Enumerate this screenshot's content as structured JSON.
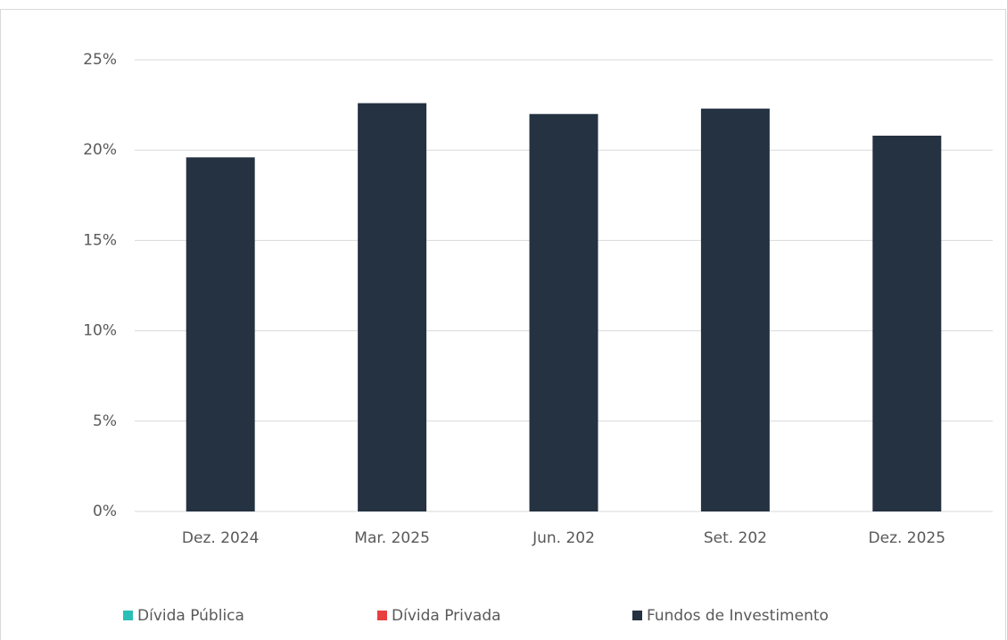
{
  "chart_data": {
    "type": "bar",
    "categories": [
      "Dez. 2024",
      "Mar. 2025",
      "Jun. 202",
      "Set. 202",
      "Dez. 2025"
    ],
    "series": [
      {
        "name": "Dívida Pública",
        "color": "#2abfb6",
        "values": [
          null,
          null,
          null,
          null,
          null
        ]
      },
      {
        "name": "Dívida Privada",
        "color": "#e84040",
        "values": [
          null,
          null,
          null,
          null,
          null
        ]
      },
      {
        "name": "Fundos de Investimento",
        "color": "#243242",
        "values": [
          19.6,
          22.6,
          22.0,
          22.3,
          20.8
        ]
      }
    ],
    "ylim": [
      0,
      25
    ],
    "yticks": [
      {
        "value": 0,
        "label": "0%"
      },
      {
        "value": 5,
        "label": "5%"
      },
      {
        "value": 10,
        "label": "10%"
      },
      {
        "value": 15,
        "label": "15%"
      },
      {
        "value": 20,
        "label": "20%"
      },
      {
        "value": 25,
        "label": "25%"
      }
    ],
    "grid": true
  }
}
